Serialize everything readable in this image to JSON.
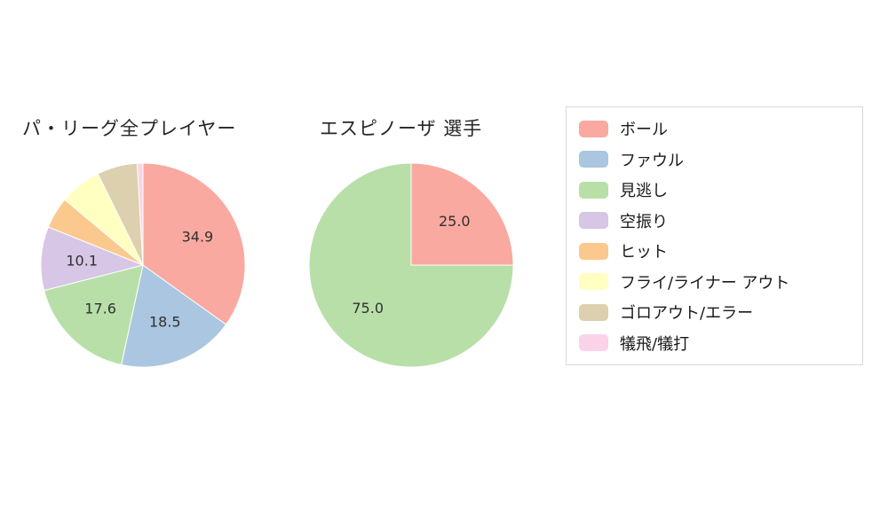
{
  "figure": {
    "background": "#ffffff"
  },
  "chart_data": [
    {
      "type": "pie",
      "title": "パ・リーグ全プレイヤー",
      "labels": [
        "ボール",
        "ファウル",
        "見逃し",
        "空振り",
        "ヒット",
        "フライ/ライナー アウト",
        "ゴロアウト/エラー",
        "犠飛/犠打"
      ],
      "values": [
        34.9,
        18.5,
        17.6,
        10.1,
        5.0,
        6.6,
        6.4,
        0.9
      ],
      "value_labels": [
        "34.9",
        "18.5",
        "17.6",
        "10.1",
        "",
        "",
        "",
        ""
      ],
      "colors": [
        "#f9a9a0",
        "#abc6e0",
        "#b8dfa8",
        "#d7c6e6",
        "#fbc98d",
        "#ffffc2",
        "#dcd0ae",
        "#fbd3e8"
      ],
      "start_angle_deg": 0,
      "direction": "clockwise",
      "legend_position": "right"
    },
    {
      "type": "pie",
      "title": "エスピノーザ 選手",
      "labels": [
        "ボール",
        "見逃し"
      ],
      "values": [
        25.0,
        75.0
      ],
      "value_labels": [
        "25.0",
        "75.0"
      ],
      "colors": [
        "#f9a9a0",
        "#b8dfa8"
      ],
      "start_angle_deg": 0,
      "direction": "clockwise",
      "legend_position": "right"
    }
  ],
  "legend": {
    "items": [
      {
        "label": "ボール",
        "color": "#f9a9a0"
      },
      {
        "label": "ファウル",
        "color": "#abc6e0"
      },
      {
        "label": "見逃し",
        "color": "#b8dfa8"
      },
      {
        "label": "空振り",
        "color": "#d7c6e6"
      },
      {
        "label": "ヒット",
        "color": "#fbc98d"
      },
      {
        "label": "フライ/ライナー アウト",
        "color": "#ffffc2"
      },
      {
        "label": "ゴロアウト/エラー",
        "color": "#dcd0ae"
      },
      {
        "label": "犠飛/犠打",
        "color": "#fbd3e8"
      }
    ]
  },
  "text_colors": {
    "title": "#262626",
    "slice_label": "#303030",
    "legend_label": "#1a1a1a"
  }
}
